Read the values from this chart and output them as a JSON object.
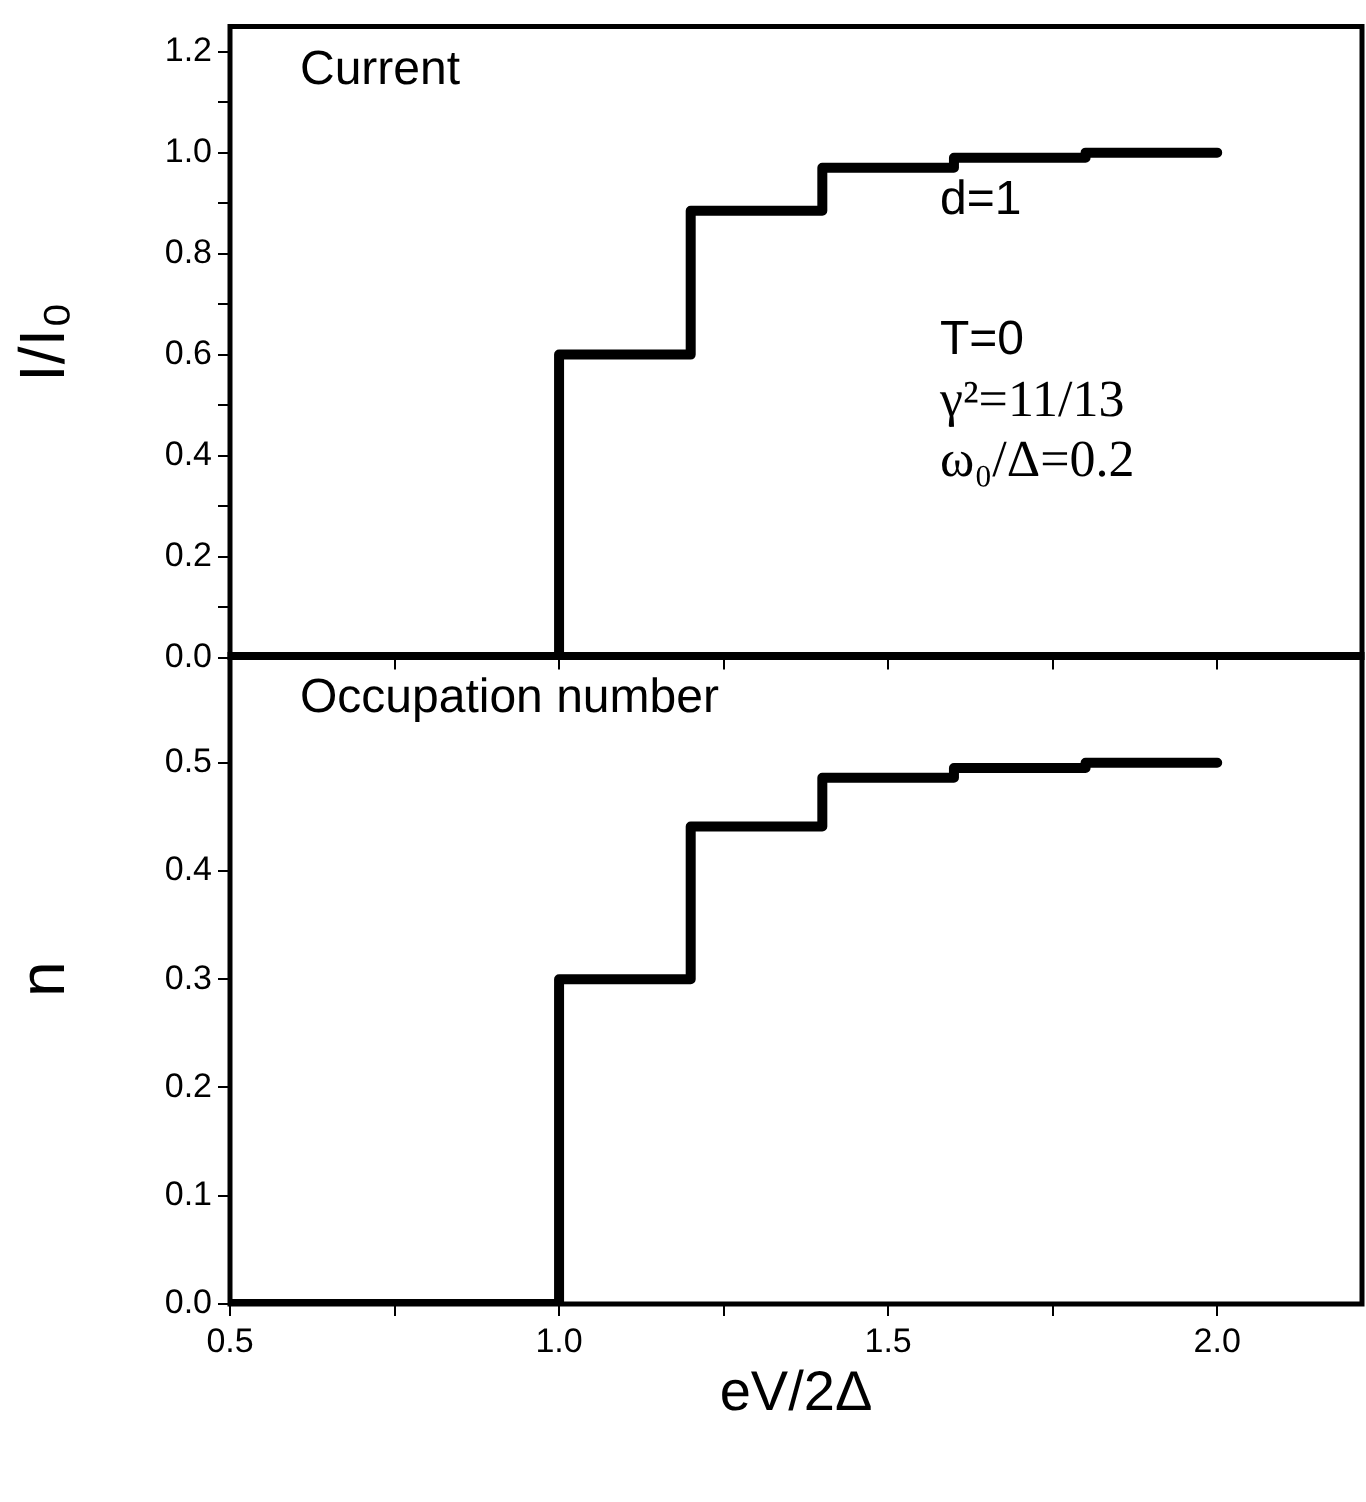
{
  "chart_data": [
    {
      "type": "step",
      "ylabel": "I/I₀",
      "x": [
        0.5,
        1.0,
        1.2,
        1.4,
        1.6,
        1.8,
        2.0
      ],
      "series": [
        {
          "color": "#000000",
          "values": [
            0,
            0.6,
            0.885,
            0.97,
            0.99,
            1.0,
            1.0
          ]
        }
      ],
      "xlim": [
        0.5,
        2.22
      ],
      "xticks": [
        {
          "value": 0.5,
          "label": null
        },
        {
          "value": 0.75,
          "label": null
        },
        {
          "value": 1.0,
          "label": null
        },
        {
          "value": 1.25,
          "label": null
        },
        {
          "value": 1.5,
          "label": null
        },
        {
          "value": 1.75,
          "label": null
        },
        {
          "value": 2.0,
          "label": null
        }
      ],
      "ylim": [
        0,
        1.25
      ],
      "yticks": [
        {
          "value": 0,
          "label": "0.0"
        },
        {
          "value": 0.1,
          "label": null
        },
        {
          "value": 0.2,
          "label": "0.2"
        },
        {
          "value": 0.3,
          "label": null
        },
        {
          "value": 0.4,
          "label": "0.4"
        },
        {
          "value": 0.5,
          "label": null
        },
        {
          "value": 0.6,
          "label": "0.6"
        },
        {
          "value": 0.7,
          "label": null
        },
        {
          "value": 0.8,
          "label": "0.8"
        },
        {
          "value": 0.9,
          "label": null
        },
        {
          "value": 1.0,
          "label": "1.0"
        },
        {
          "value": 1.1,
          "label": null
        },
        {
          "value": 1.2,
          "label": "1.2"
        }
      ],
      "tick_labels": "y",
      "grid": false,
      "legend": false,
      "annotations": [
        "Current",
        "d=1",
        "T=0",
        "γ²=11/13",
        "ω₀/Δ=0.2"
      ]
    },
    {
      "type": "step",
      "ylabel": "n",
      "xlabel": "eV/2Δ",
      "x": [
        0.5,
        1.0,
        1.2,
        1.4,
        1.6,
        1.8,
        2.0
      ],
      "series": [
        {
          "color": "#000000",
          "values": [
            0,
            0.3,
            0.441,
            0.486,
            0.495,
            0.5,
            0.5
          ]
        }
      ],
      "xlim": [
        0.5,
        2.22
      ],
      "xticks": [
        {
          "value": 0.5,
          "label": "0.5"
        },
        {
          "value": 0.75,
          "label": null
        },
        {
          "value": 1.0,
          "label": "1.0"
        },
        {
          "value": 1.25,
          "label": null
        },
        {
          "value": 1.5,
          "label": "1.5"
        },
        {
          "value": 1.75,
          "label": null
        },
        {
          "value": 2.0,
          "label": "2.0"
        }
      ],
      "ylim": [
        0,
        0.6
      ],
      "yticks": [
        {
          "value": 0,
          "label": "0.0"
        },
        {
          "value": 0.1,
          "label": "0.1"
        },
        {
          "value": 0.2,
          "label": "0.2"
        },
        {
          "value": 0.3,
          "label": "0.3"
        },
        {
          "value": 0.4,
          "label": "0.4"
        },
        {
          "value": 0.5,
          "label": "0.5"
        }
      ],
      "grid": false,
      "legend": false,
      "annotations": [
        "Occupation number"
      ]
    }
  ]
}
